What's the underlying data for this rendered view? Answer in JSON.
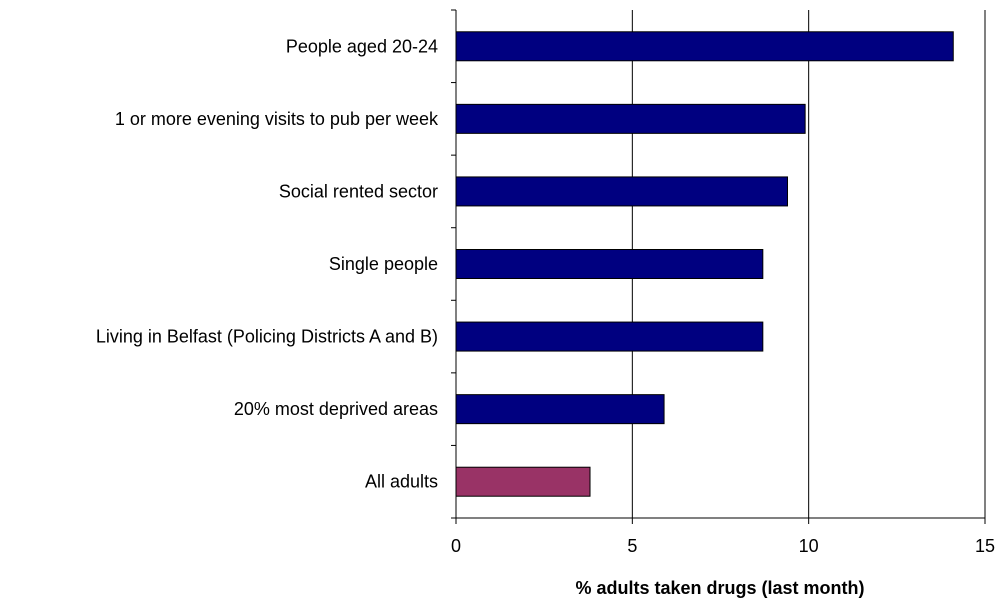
{
  "chart_data": {
    "type": "bar",
    "orientation": "horizontal",
    "title": "",
    "xlabel": "% adults taken drugs (last month)",
    "ylabel": "",
    "xlim": [
      0,
      15
    ],
    "xticks": [
      0,
      5,
      10,
      15
    ],
    "grid": "vertical",
    "legend": "none",
    "categories": [
      "People aged 20-24",
      "1 or more evening visits to pub per week",
      "Social rented sector",
      "Single people",
      "Living in Belfast (Policing Districts A and B)",
      "20% most deprived areas",
      "All adults"
    ],
    "values": [
      14.1,
      9.9,
      9.4,
      8.7,
      8.7,
      5.9,
      3.8
    ],
    "bar_colors": [
      "#000080",
      "#000080",
      "#000080",
      "#000080",
      "#000080",
      "#000080",
      "#993366"
    ]
  }
}
